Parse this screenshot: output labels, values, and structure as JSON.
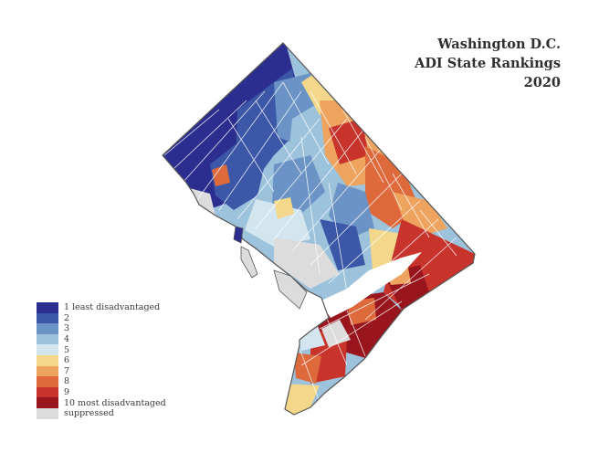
{
  "title": {
    "line1": "Washington D.C.",
    "line2": "ADI State Rankings",
    "line3": "2020"
  },
  "legend": {
    "items": [
      {
        "label": "1  least disadvantaged",
        "color": "#2c2e8f"
      },
      {
        "label": "2",
        "color": "#3c57a8"
      },
      {
        "label": "3",
        "color": "#6b93c6"
      },
      {
        "label": "4",
        "color": "#9dc2dc"
      },
      {
        "label": "5",
        "color": "#d3e6ef"
      },
      {
        "label": "6",
        "color": "#f3d88c"
      },
      {
        "label": "7",
        "color": "#eea35e"
      },
      {
        "label": "8",
        "color": "#de6a3c"
      },
      {
        "label": "9",
        "color": "#c8342c"
      },
      {
        "label": "10  most disadvantaged",
        "color": "#98151d"
      },
      {
        "label": "suppressed",
        "color": "#dcdcdc"
      }
    ]
  },
  "map": {
    "boundary_color": "#555555",
    "tract_line_color": "#ffffff"
  }
}
